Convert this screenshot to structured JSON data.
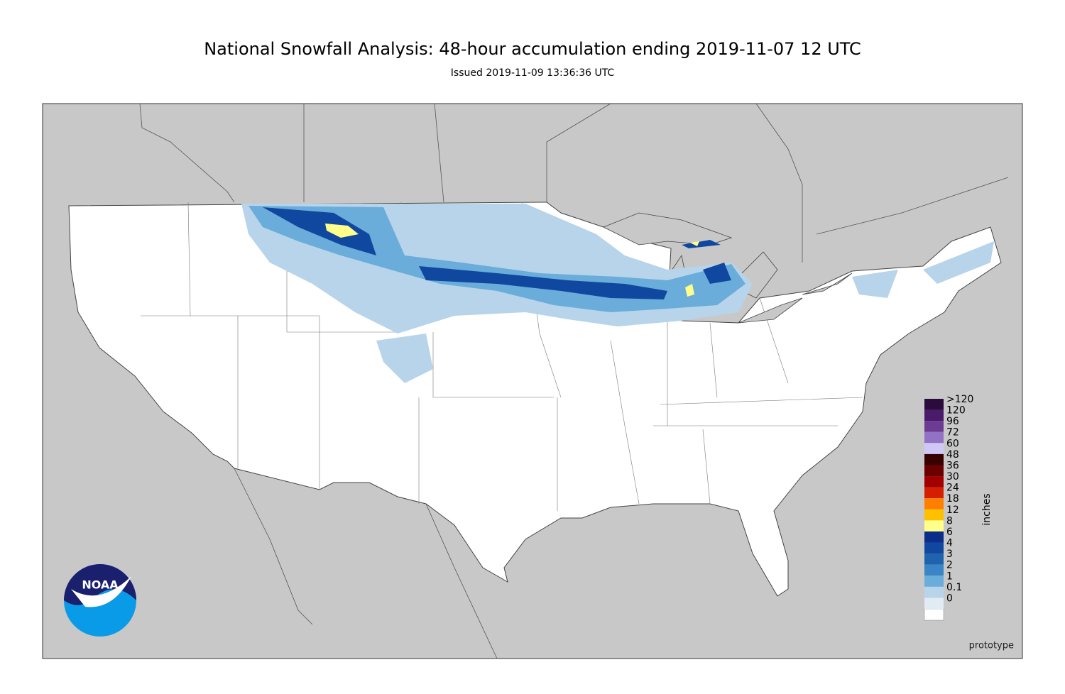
{
  "title": "National Snowfall Analysis: 48-hour accumulation ending 2019-11-07 12 UTC",
  "subtitle": "Issued 2019-11-09 13:36:36 UTC",
  "logo_text": "NOAA",
  "footer": "prototype",
  "legend": {
    "unit": "inches",
    "items": [
      {
        "label": ">120",
        "color": "#2b0a3d"
      },
      {
        "label": "120",
        "color": "#4a1a6b"
      },
      {
        "label": "96",
        "color": "#6e3b92"
      },
      {
        "label": "72",
        "color": "#9272c4"
      },
      {
        "label": "60",
        "color": "#cfc8f7"
      },
      {
        "label": "48",
        "color": "#3a0000"
      },
      {
        "label": "36",
        "color": "#6b0000"
      },
      {
        "label": "30",
        "color": "#a00000"
      },
      {
        "label": "24",
        "color": "#d42000"
      },
      {
        "label": "18",
        "color": "#ff8000"
      },
      {
        "label": "12",
        "color": "#ffc000"
      },
      {
        "label": "8",
        "color": "#ffff8a"
      },
      {
        "label": "6",
        "color": "#0c2e8a"
      },
      {
        "label": "4",
        "color": "#1048a0"
      },
      {
        "label": "3",
        "color": "#1e63ad"
      },
      {
        "label": "2",
        "color": "#3a85c6"
      },
      {
        "label": "1",
        "color": "#6aacda"
      },
      {
        "label": "0.1",
        "color": "#b7d4ea"
      },
      {
        "label": "0",
        "color": "#e1ebf4"
      }
    ]
  }
}
